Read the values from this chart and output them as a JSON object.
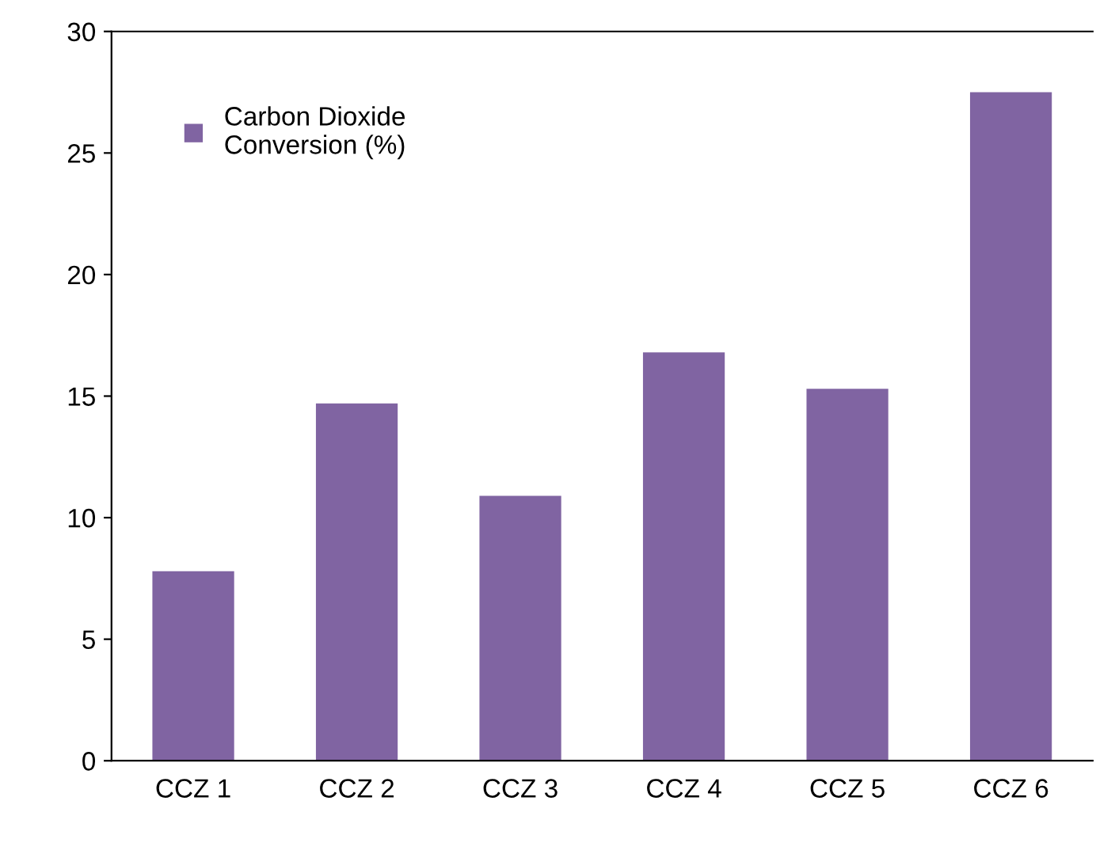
{
  "chart_data": {
    "type": "bar",
    "categories": [
      "CCZ 1",
      "CCZ 2",
      "CCZ 3",
      "CCZ 4",
      "CCZ 5",
      "CCZ 6"
    ],
    "series": [
      {
        "name": "Carbon Dioxide\nConversion (%)",
        "color": "#8064a2",
        "values": [
          7.8,
          14.7,
          10.9,
          16.8,
          15.3,
          27.5
        ]
      }
    ],
    "ylim": [
      0,
      30
    ],
    "yticks": [
      0,
      5,
      10,
      15,
      20,
      25,
      30
    ],
    "grid": false,
    "legend": "top left"
  }
}
